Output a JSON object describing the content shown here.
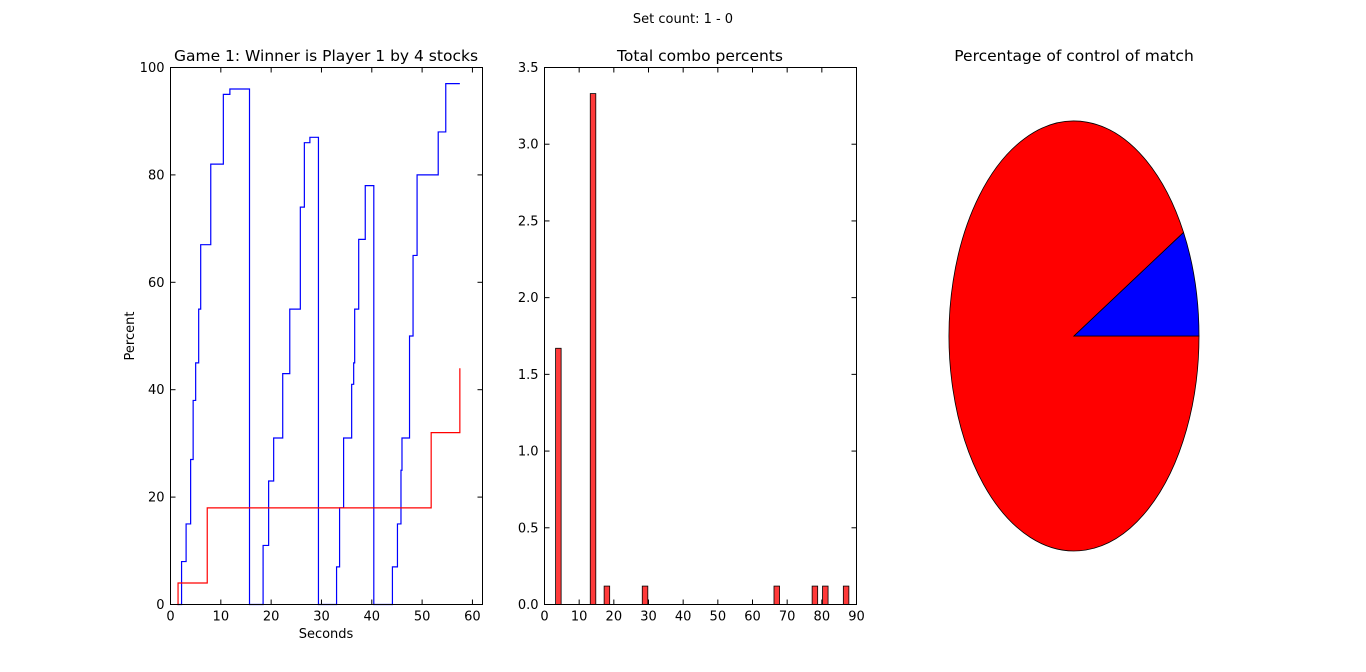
{
  "suptitle": "Set count: 1 - 0",
  "chart_data": [
    {
      "type": "line",
      "title": "Game 1: Winner is Player 1 by 4 stocks",
      "xlabel": "Seconds",
      "ylabel": "Percent",
      "xlim": [
        0,
        62
      ],
      "ylim": [
        0,
        100
      ],
      "xticks": [
        0,
        10,
        20,
        30,
        40,
        50,
        60
      ],
      "yticks": [
        0,
        20,
        40,
        60,
        80,
        100
      ],
      "grid": false,
      "series": [
        {
          "color": "#0000ff",
          "style": "step",
          "x": [
            1.5,
            1.8,
            2.2,
            2.9,
            3.1,
            3.6,
            4.0,
            4.5,
            5.0,
            5.6,
            6.0,
            7.9,
            8.0,
            10.3,
            10.5,
            11.5,
            11.8,
            12.6,
            13.0,
            15.5,
            15.7,
            18.2,
            18.4,
            19.2,
            19.5,
            20.2,
            20.5,
            22.1,
            22.3,
            23.5,
            23.7,
            25.6,
            25.8,
            26.4,
            26.6,
            27.5,
            27.7,
            29.2,
            29.4,
            32.8,
            33.0,
            33.4,
            33.6,
            34.2,
            34.4,
            35.8,
            36.0,
            36.4,
            36.6,
            37.2,
            37.4,
            38.5,
            38.7,
            39.6,
            39.8,
            40.2,
            40.4,
            43.9,
            44.1,
            44.9,
            45.1,
            45.8,
            46.0,
            47.3,
            47.5,
            48.0,
            48.2,
            48.8,
            49.0,
            53.0,
            53.2,
            54.5,
            54.7,
            57.5
          ],
          "y": [
            0,
            0,
            8,
            8,
            15,
            15,
            27,
            38,
            45,
            55,
            67,
            67,
            82,
            82,
            95,
            95,
            96,
            96,
            96,
            96,
            0,
            0,
            11,
            11,
            23,
            23,
            31,
            31,
            43,
            43,
            55,
            55,
            74,
            74,
            86,
            86,
            87,
            87,
            0,
            0,
            7,
            7,
            18,
            18,
            31,
            31,
            41,
            45,
            55,
            55,
            68,
            68,
            78,
            78,
            78,
            78,
            0,
            0,
            7,
            7,
            15,
            25,
            31,
            31,
            50,
            50,
            65,
            65,
            80,
            80,
            88,
            88,
            97,
            97
          ]
        },
        {
          "color": "#ff0000",
          "style": "step",
          "x": [
            1.3,
            1.5,
            7.0,
            7.3,
            51.5,
            51.8,
            57.5
          ],
          "y": [
            0,
            4,
            4,
            18,
            18,
            32,
            44
          ]
        }
      ]
    },
    {
      "type": "bar",
      "title": "Total combo percents",
      "xlim": [
        0,
        90
      ],
      "ylim": [
        0,
        3.5
      ],
      "xticks": [
        0,
        10,
        20,
        30,
        40,
        50,
        60,
        70,
        80,
        90
      ],
      "yticks": [
        0.0,
        0.5,
        1.0,
        1.5,
        2.0,
        2.5,
        3.0,
        3.5
      ],
      "grid": false,
      "bar_width": 1.6,
      "bar_color": "#ff3a3a",
      "bars": [
        {
          "x": 4,
          "value": 1.67
        },
        {
          "x": 14,
          "value": 3.33
        },
        {
          "x": 18,
          "value": 0.12
        },
        {
          "x": 29,
          "value": 0.12
        },
        {
          "x": 67,
          "value": 0.12
        },
        {
          "x": 78,
          "value": 0.12
        },
        {
          "x": 81,
          "value": 0.12
        },
        {
          "x": 87,
          "value": 0.12
        }
      ]
    },
    {
      "type": "pie",
      "title": "Percentage of control of match",
      "slices": [
        {
          "value": 0.92,
          "color": "#ff0000"
        },
        {
          "value": 0.08,
          "color": "#0000ff"
        }
      ]
    }
  ]
}
